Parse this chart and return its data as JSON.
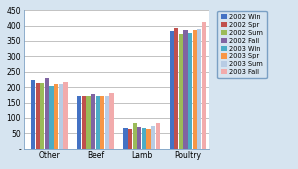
{
  "categories": [
    "Other",
    "Beef",
    "Lamb",
    "Poultry"
  ],
  "series": {
    "2002 Win": [
      222,
      172,
      68,
      383
    ],
    "2002 Spr": [
      215,
      170,
      65,
      393
    ],
    "2002 Sum": [
      215,
      172,
      82,
      372
    ],
    "2002 Fall": [
      230,
      178,
      70,
      385
    ],
    "2003 Win": [
      205,
      170,
      68,
      375
    ],
    "2003 Spr": [
      210,
      170,
      65,
      385
    ],
    "2003 Sum": [
      210,
      172,
      75,
      388
    ],
    "2003 Fall": [
      218,
      180,
      83,
      413
    ]
  },
  "colors": {
    "2002 Win": "#4472C4",
    "2002 Spr": "#C0504D",
    "2002 Sum": "#9BBB59",
    "2002 Fall": "#8064A2",
    "2003 Win": "#4BACC6",
    "2003 Spr": "#F79646",
    "2003 Sum": "#B8CCE4",
    "2003 Fall": "#F2ABAC"
  },
  "ylim": [
    0,
    450
  ],
  "yticks": [
    0,
    50,
    100,
    150,
    200,
    250,
    300,
    350,
    400,
    450
  ],
  "ytick_labels": [
    "-",
    "50",
    "100",
    "150",
    "200",
    "250",
    "300",
    "350",
    "400",
    "450"
  ],
  "bg_color": "#D6E4F0",
  "plot_bg": "#FFFFFF",
  "grid_color": "#AAAAAA",
  "border_color": "#7BA0C4",
  "outer_border_color": "#7BA0C4"
}
